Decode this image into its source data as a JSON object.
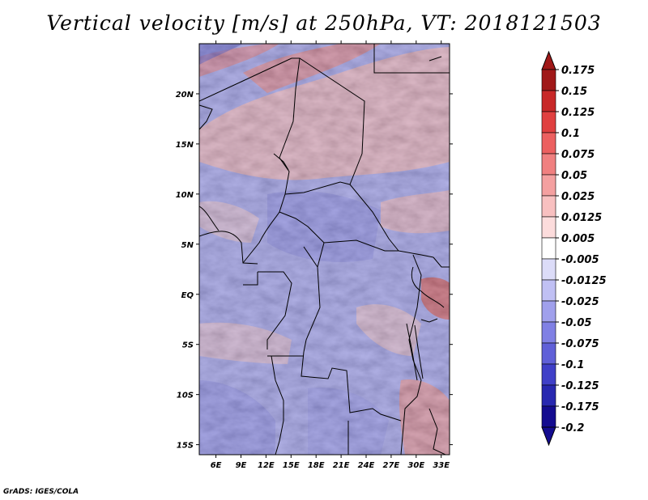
{
  "title": "Vertical velocity [m/s] at 250hPa, VT: 2018121503",
  "credit": "GrADS: IGES/COLA",
  "chart_data": {
    "type": "heatmap",
    "title": "Vertical velocity [m/s] at 250hPa, VT: 2018121503",
    "variable": "Vertical velocity",
    "units": "m/s",
    "level": "250hPa",
    "valid_time": "2018121503",
    "lon_range": [
      4,
      34
    ],
    "lat_range": [
      -16,
      25
    ],
    "x_ticks": [
      {
        "lon": 6,
        "label": "6E"
      },
      {
        "lon": 9,
        "label": "9E"
      },
      {
        "lon": 12,
        "label": "12E"
      },
      {
        "lon": 15,
        "label": "15E"
      },
      {
        "lon": 18,
        "label": "18E"
      },
      {
        "lon": 21,
        "label": "21E"
      },
      {
        "lon": 24,
        "label": "24E"
      },
      {
        "lon": 27,
        "label": "27E"
      },
      {
        "lon": 30,
        "label": "30E"
      },
      {
        "lon": 33,
        "label": "33E"
      }
    ],
    "y_ticks": [
      {
        "lat": 20,
        "label": "20N"
      },
      {
        "lat": 15,
        "label": "15N"
      },
      {
        "lat": 10,
        "label": "10N"
      },
      {
        "lat": 5,
        "label": "5N"
      },
      {
        "lat": 0,
        "label": "EQ"
      },
      {
        "lat": -5,
        "label": "5S"
      },
      {
        "lat": -10,
        "label": "10S"
      },
      {
        "lat": -15,
        "label": "15S"
      }
    ],
    "colorbar": {
      "levels": [
        "0.175",
        "0.15",
        "0.125",
        "0.1",
        "0.075",
        "0.05",
        "0.025",
        "0.0125",
        "0.005",
        "-0.005",
        "-0.0125",
        "-0.025",
        "-0.05",
        "-0.075",
        "-0.1",
        "-0.125",
        "-0.175",
        "-0.2"
      ],
      "colors": [
        "#a01818",
        "#c82828",
        "#e04040",
        "#ec6060",
        "#f08080",
        "#f4a0a0",
        "#f8c0c0",
        "#fcdcdc",
        "#ffffff",
        "#dcdcf8",
        "#c0c0f4",
        "#a0a0ec",
        "#8080e4",
        "#6060d8",
        "#4040c8",
        "#2828b0",
        "#140c90"
      ],
      "extend_colors": {
        "max": "#a01818",
        "min": "#140c90"
      }
    }
  }
}
